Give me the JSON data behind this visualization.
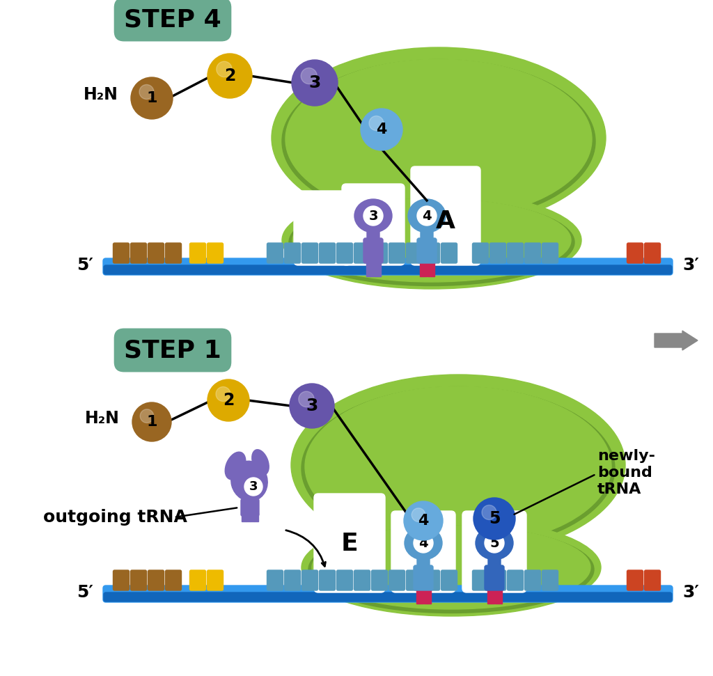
{
  "bg_color": "#ffffff",
  "step4_label": "STEP 4",
  "step1_label": "STEP 1",
  "step_label_bg": "#6aaa90",
  "ribosome_light": "#8dc63f",
  "ribosome_mid": "#6a9e2f",
  "ribosome_dark": "#4a7a1f",
  "mrna_color": "#3399ee",
  "mrna_dark": "#1166bb",
  "codon_brown": "#996622",
  "codon_yellow": "#eebb00",
  "codon_red": "#cc4422",
  "codon_blue": "#5599bb",
  "aa1_color": "#996622",
  "aa2_color": "#ddaa00",
  "aa3_color": "#6655aa",
  "aa4_color": "#66aadd",
  "aa5_color": "#2255bb",
  "trna_purple": "#7766bb",
  "trna_blue": "#5599cc",
  "trna_darkblue": "#3366bb",
  "trna_white_bg": "#ffffff",
  "pink_bar": "#cc2255",
  "white_tunnel": "#ffffff",
  "arrow_gray": "#888888",
  "h2n_text": "H₂N",
  "label_A": "A",
  "label_E": "E",
  "outgoing_trna_text": "outgoing tRNA",
  "newly_bound_text": "newly-\nbound\ntRNA",
  "label_5prime": "5′",
  "label_3prime": "3′"
}
